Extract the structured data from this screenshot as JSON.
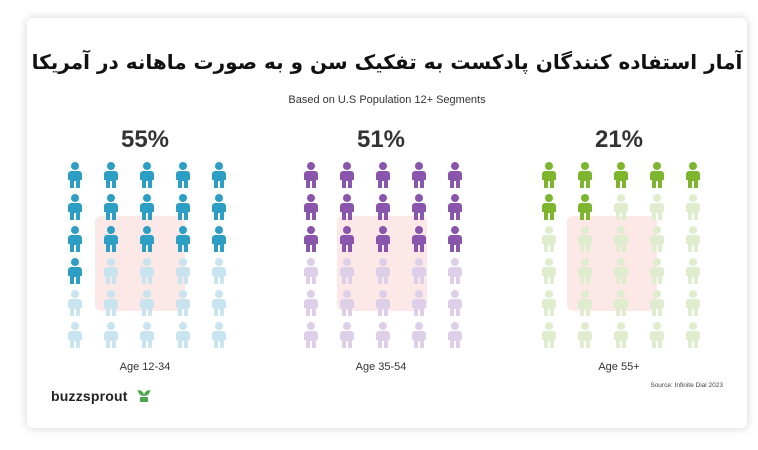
{
  "header": {
    "title": "آمار استفاده کنندگان پادکست به تفکیک سن و به صورت ماهانه در آمریکا",
    "subtitle": "Based on U.S Population 12+ Segments"
  },
  "chart_data": {
    "type": "pictogram",
    "title": "آمار استفاده کنندگان پادکست به تفکیک سن و به صورت ماهانه در آمریکا",
    "subtitle": "Based on U.S Population 12+ Segments",
    "unit": "percent",
    "icon": "person-icon",
    "icons_per_group": 30,
    "categories": [
      "Age 12-34",
      "Age 35-54",
      "Age 55+"
    ],
    "values": [
      55,
      51,
      21
    ],
    "value_labels": [
      "55%",
      "51%",
      "21%"
    ],
    "series": [
      {
        "name": "Age 12-34",
        "value": 55,
        "filled_icons": 16,
        "color": "#2e9fc4",
        "empty_color": "#c9e3ef"
      },
      {
        "name": "Age 35-54",
        "value": 51,
        "filled_icons": 15,
        "color": "#8a55ad",
        "empty_color": "#ddcfe8"
      },
      {
        "name": "Age 55+",
        "value": 21,
        "filled_icons": 7,
        "color": "#7db52f",
        "empty_color": "#dfeccd"
      }
    ]
  },
  "footer": {
    "brand": "buzzsprout",
    "brand_icon": "sprout-icon",
    "brand_icon_color": "#4aa84a",
    "source": "Source: Infinite Dial 2023"
  }
}
